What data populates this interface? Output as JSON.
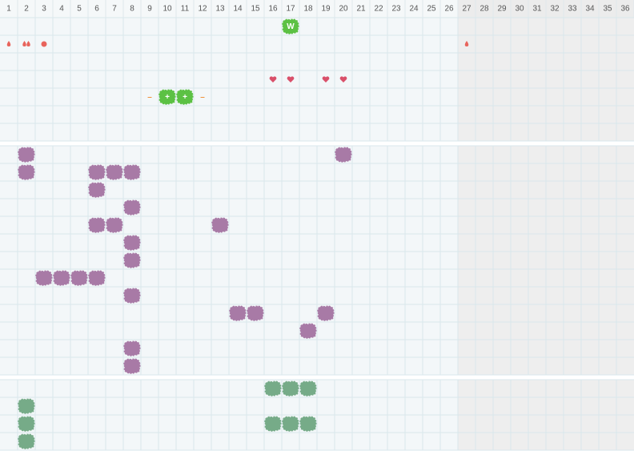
{
  "columns": [
    1,
    2,
    3,
    4,
    5,
    6,
    7,
    8,
    9,
    10,
    11,
    12,
    13,
    14,
    15,
    16,
    17,
    18,
    19,
    20,
    21,
    22,
    23,
    24,
    25,
    26,
    27,
    28,
    29,
    30,
    31,
    32,
    33,
    34,
    35,
    36
  ],
  "shaded_from_column": 27,
  "sections": [
    {
      "rows": 7,
      "items": [
        {
          "row": 0,
          "col": 17,
          "icon": "blob",
          "color": "#5cc144",
          "label": "W"
        },
        {
          "row": 1,
          "col": 1,
          "icon": "drop",
          "color": "#e8645c"
        },
        {
          "row": 1,
          "col": 2,
          "icon": "drops",
          "color": "#e8645c"
        },
        {
          "row": 1,
          "col": 3,
          "icon": "dot",
          "color": "#e8645c"
        },
        {
          "row": 1,
          "col": 27,
          "icon": "drop",
          "color": "#e8645c"
        },
        {
          "row": 3,
          "col": 16,
          "icon": "heart",
          "color": "#d9506a"
        },
        {
          "row": 3,
          "col": 17,
          "icon": "heart",
          "color": "#d9506a"
        },
        {
          "row": 3,
          "col": 19,
          "icon": "heart",
          "color": "#d9506a"
        },
        {
          "row": 3,
          "col": 20,
          "icon": "heart",
          "color": "#d9506a"
        },
        {
          "row": 4,
          "col": 9,
          "icon": "text",
          "color": "#f0903a",
          "label": "–"
        },
        {
          "row": 4,
          "col": 10,
          "icon": "blob",
          "color": "#5cc144",
          "label": "+"
        },
        {
          "row": 4,
          "col": 11,
          "icon": "blob",
          "color": "#5cc144",
          "label": "+"
        },
        {
          "row": 4,
          "col": 12,
          "icon": "text",
          "color": "#f0903a",
          "label": "–"
        }
      ]
    },
    {
      "rows": 13,
      "items": [
        {
          "row": 0,
          "col": 2,
          "icon": "blob",
          "color": "#a87aa6"
        },
        {
          "row": 0,
          "col": 20,
          "icon": "blob",
          "color": "#a87aa6"
        },
        {
          "row": 1,
          "col": 2,
          "icon": "blob",
          "color": "#a87aa6"
        },
        {
          "row": 1,
          "col": 6,
          "icon": "blob",
          "color": "#a87aa6"
        },
        {
          "row": 1,
          "col": 7,
          "icon": "blob",
          "color": "#a87aa6"
        },
        {
          "row": 1,
          "col": 8,
          "icon": "blob",
          "color": "#a87aa6"
        },
        {
          "row": 2,
          "col": 6,
          "icon": "blob",
          "color": "#a87aa6"
        },
        {
          "row": 3,
          "col": 8,
          "icon": "blob",
          "color": "#a87aa6"
        },
        {
          "row": 4,
          "col": 6,
          "icon": "blob",
          "color": "#a87aa6"
        },
        {
          "row": 4,
          "col": 7,
          "icon": "blob",
          "color": "#a87aa6"
        },
        {
          "row": 4,
          "col": 13,
          "icon": "blob",
          "color": "#a87aa6"
        },
        {
          "row": 5,
          "col": 8,
          "icon": "blob",
          "color": "#a87aa6"
        },
        {
          "row": 6,
          "col": 8,
          "icon": "blob",
          "color": "#a87aa6"
        },
        {
          "row": 7,
          "col": 3,
          "icon": "blob",
          "color": "#a87aa6"
        },
        {
          "row": 7,
          "col": 4,
          "icon": "blob",
          "color": "#a87aa6"
        },
        {
          "row": 7,
          "col": 5,
          "icon": "blob",
          "color": "#a87aa6"
        },
        {
          "row": 7,
          "col": 6,
          "icon": "blob",
          "color": "#a87aa6"
        },
        {
          "row": 8,
          "col": 8,
          "icon": "blob",
          "color": "#a87aa6"
        },
        {
          "row": 9,
          "col": 14,
          "icon": "blob",
          "color": "#a87aa6"
        },
        {
          "row": 9,
          "col": 15,
          "icon": "blob",
          "color": "#a87aa6"
        },
        {
          "row": 9,
          "col": 19,
          "icon": "blob",
          "color": "#a87aa6"
        },
        {
          "row": 10,
          "col": 18,
          "icon": "blob",
          "color": "#a87aa6"
        },
        {
          "row": 11,
          "col": 8,
          "icon": "blob",
          "color": "#a87aa6"
        },
        {
          "row": 12,
          "col": 8,
          "icon": "blob",
          "color": "#a87aa6"
        }
      ]
    },
    {
      "rows": 4,
      "items": [
        {
          "row": 0,
          "col": 16,
          "icon": "blob",
          "color": "#76ab88"
        },
        {
          "row": 0,
          "col": 17,
          "icon": "blob",
          "color": "#76ab88"
        },
        {
          "row": 0,
          "col": 18,
          "icon": "blob",
          "color": "#76ab88"
        },
        {
          "row": 1,
          "col": 2,
          "icon": "blob",
          "color": "#76ab88"
        },
        {
          "row": 2,
          "col": 2,
          "icon": "blob",
          "color": "#76ab88"
        },
        {
          "row": 2,
          "col": 16,
          "icon": "blob",
          "color": "#76ab88"
        },
        {
          "row": 2,
          "col": 17,
          "icon": "blob",
          "color": "#76ab88"
        },
        {
          "row": 2,
          "col": 18,
          "icon": "blob",
          "color": "#76ab88"
        },
        {
          "row": 3,
          "col": 2,
          "icon": "blob",
          "color": "#76ab88"
        }
      ]
    }
  ]
}
